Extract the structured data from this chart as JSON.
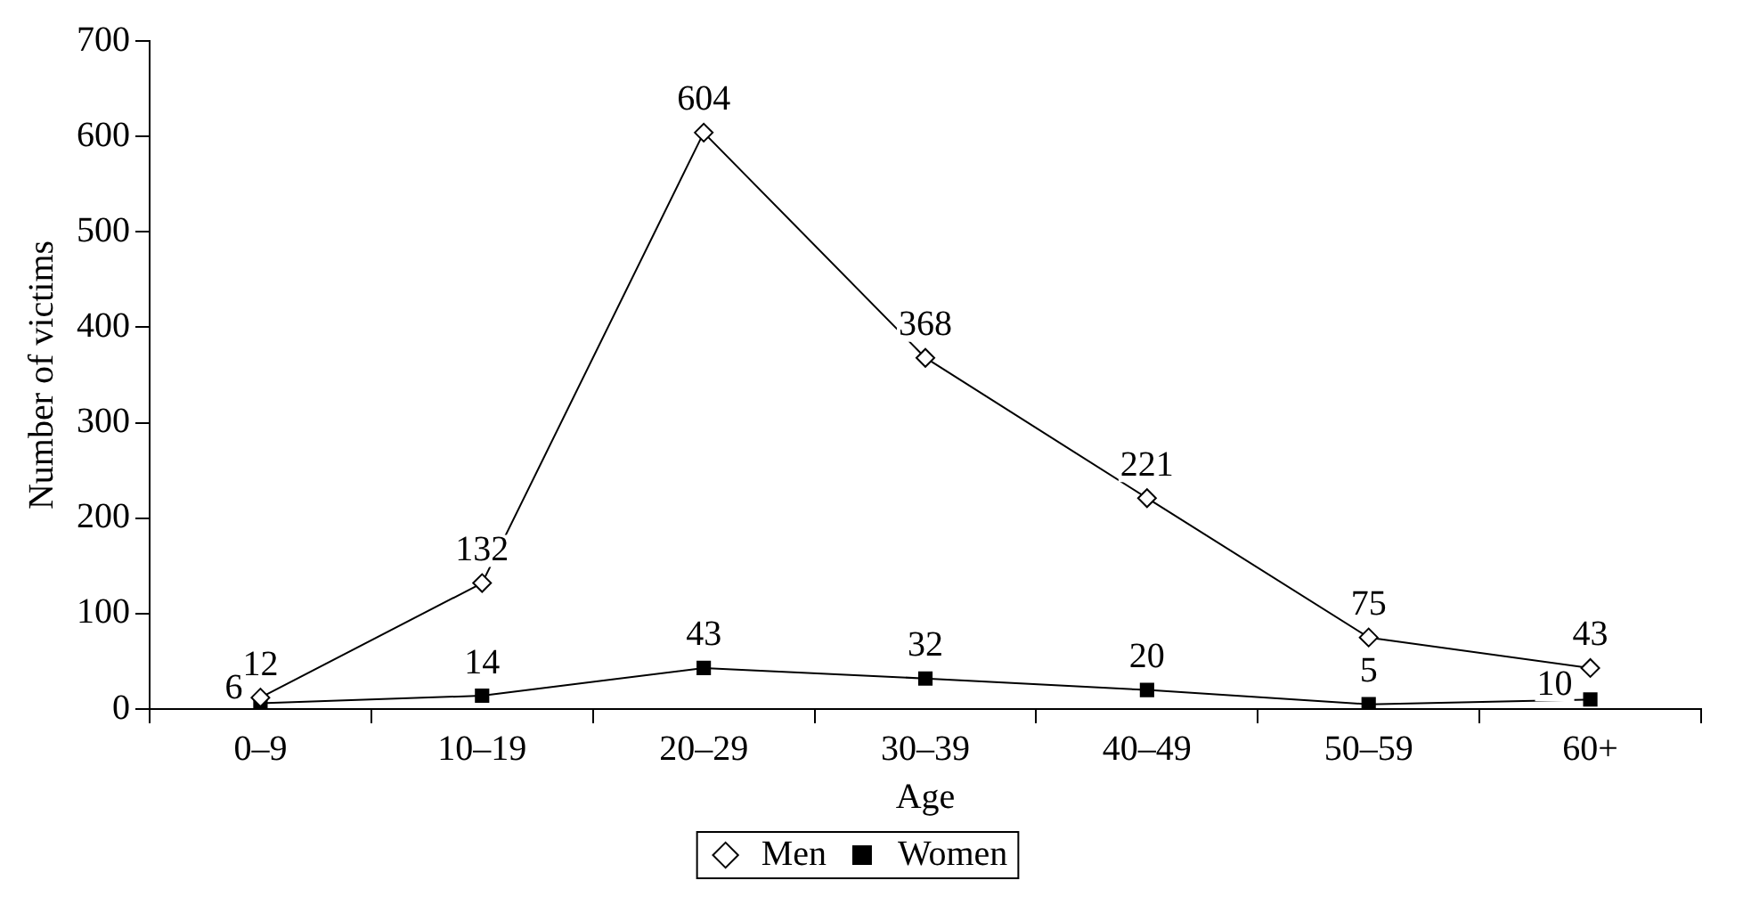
{
  "chart_data": {
    "type": "line",
    "xlabel": "Age",
    "ylabel": "Number of victims",
    "categories": [
      "0–9",
      "10–19",
      "20–29",
      "30–39",
      "40–49",
      "50–59",
      "60+"
    ],
    "series": [
      {
        "name": "Men",
        "color": "#000000",
        "marker": "diamond",
        "values": [
          12,
          132,
          604,
          368,
          221,
          75,
          43
        ]
      },
      {
        "name": "Women",
        "color": "#000000",
        "marker": "square",
        "values": [
          6,
          14,
          43,
          32,
          20,
          5,
          10
        ]
      }
    ],
    "ylim": [
      0,
      700
    ],
    "yticks": [
      0,
      100,
      200,
      300,
      400,
      500,
      600,
      700
    ],
    "grid": false,
    "legend": "bottom",
    "data_labels": true,
    "line_style": "solid"
  }
}
